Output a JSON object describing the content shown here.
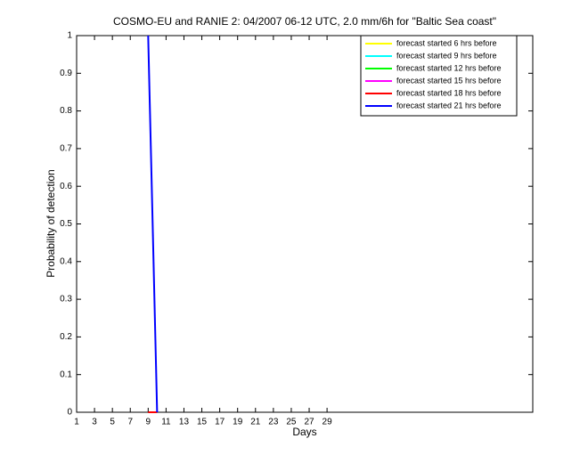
{
  "chart_data": {
    "type": "line",
    "title": "COSMO-EU and RANIE 2: 04/2007 06-12 UTC, 2.0 mm/6h for \"Baltic Sea coast\"",
    "xlabel": "Days",
    "ylabel": "Probability of detection",
    "x": [
      9,
      10
    ],
    "series": [
      {
        "name": "forecast started 6 hrs before",
        "color": "#ffff00",
        "values": [
          null,
          null
        ]
      },
      {
        "name": "forecast started 9 hrs before",
        "color": "#00ffff",
        "values": [
          null,
          null
        ]
      },
      {
        "name": "forecast started 12 hrs before",
        "color": "#00ff00",
        "values": [
          null,
          null
        ]
      },
      {
        "name": "forecast started 15 hrs before",
        "color": "#ff00ff",
        "values": [
          null,
          null
        ]
      },
      {
        "name": "forecast started 18 hrs before",
        "color": "#ff0000",
        "values": [
          0,
          0
        ]
      },
      {
        "name": "forecast started 21 hrs before",
        "color": "#0000ff",
        "values": [
          1,
          0
        ]
      }
    ],
    "xlim": [
      1,
      52
    ],
    "xticks": [
      1,
      3,
      5,
      7,
      9,
      11,
      13,
      15,
      17,
      19,
      21,
      23,
      25,
      27,
      29
    ],
    "ylim": [
      0,
      1
    ],
    "yticks": [
      0,
      0.1,
      0.2,
      0.3,
      0.4,
      0.5,
      0.6,
      0.7,
      0.8,
      0.9,
      1
    ],
    "legend": "upper right"
  }
}
